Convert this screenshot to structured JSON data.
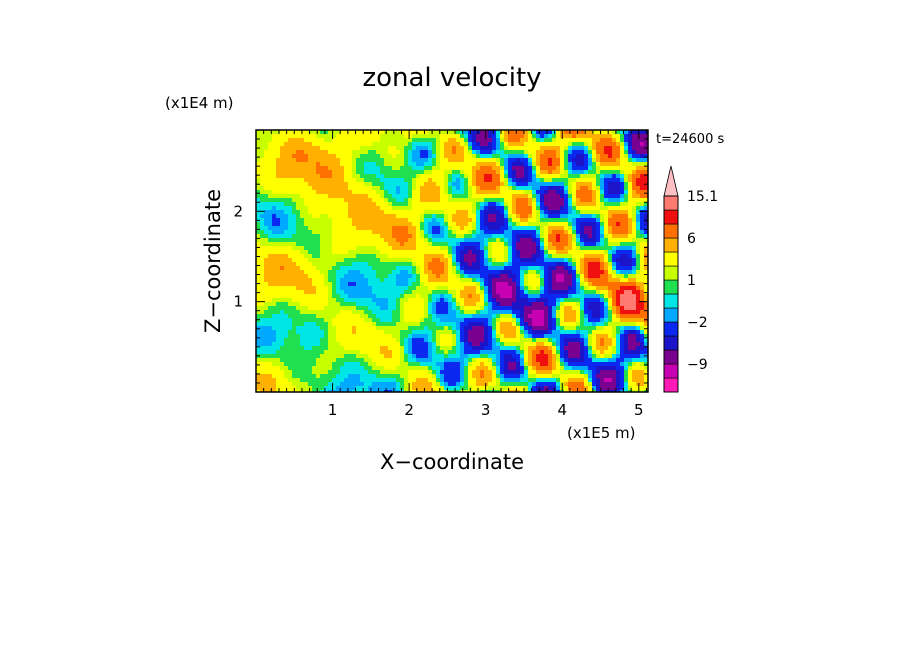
{
  "chart_data": {
    "type": "heatmap",
    "title": "zonal velocity",
    "xlabel": "X−coordinate",
    "ylabel": "Z−coordinate",
    "x_unit": "(x1E5 m)",
    "y_unit": "(x1E4 m)",
    "time_label": "t=24600 s",
    "xlim": [
      0.0,
      5.12
    ],
    "ylim": [
      0.0,
      2.9
    ],
    "x_ticks": [
      1,
      2,
      3,
      4,
      5
    ],
    "x_tick_labels": [
      "1",
      "2",
      "3",
      "4",
      "5"
    ],
    "y_ticks": [
      1,
      2
    ],
    "y_tick_labels": [
      "1",
      "2"
    ],
    "colorbar": {
      "levels": [
        -15,
        -12,
        -9,
        -6,
        -4,
        -2,
        -1,
        0,
        1,
        2,
        4,
        6,
        9,
        12,
        15.1
      ],
      "colors": [
        "#ff1ab8",
        "#c800b4",
        "#7a0090",
        "#1c14c8",
        "#0a28f0",
        "#00a8ff",
        "#00e6e6",
        "#20e050",
        "#c8ff00",
        "#ffff00",
        "#ffb000",
        "#ff7000",
        "#f01010",
        "#ff7a70",
        "#ffc0c4"
      ],
      "tick_labels": [
        {
          "value": 15.1,
          "label": "15.1"
        },
        {
          "value": 6,
          "label": "6"
        },
        {
          "value": 1,
          "label": "1"
        },
        {
          "value": -2,
          "label": "−2"
        },
        {
          "value": -9,
          "label": "−9"
        }
      ]
    },
    "features": [
      {
        "x": 0.5,
        "z": 1.1,
        "value": 4
      },
      {
        "x": 1.6,
        "z": 0.9,
        "value": 0.5
      },
      {
        "x": 2.2,
        "z": 1.7,
        "value": 5
      },
      {
        "x": 1.0,
        "z": 2.4,
        "value": 7
      },
      {
        "x": 3.2,
        "z": 1.1,
        "value": -7
      },
      {
        "x": 3.7,
        "z": 1.4,
        "value": -5
      },
      {
        "x": 4.8,
        "z": 1.1,
        "value": 9
      },
      {
        "x": 4.4,
        "z": 0.5,
        "value": -4
      },
      {
        "x": 4.2,
        "z": 2.5,
        "value": 3
      },
      {
        "x": 0.9,
        "z": 0.7,
        "value": 0
      }
    ]
  }
}
